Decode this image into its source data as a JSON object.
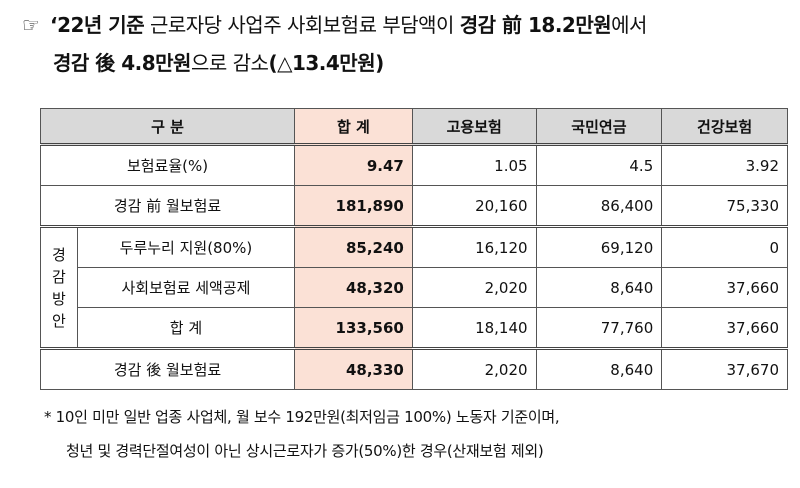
{
  "heading": {
    "marker": "☞",
    "line1_bold_a": "‘22년 기준",
    "line1_text_a": " 근로자당 사업주 사회보험료 부담액이 ",
    "line1_bold_b": "경감 前 18.2만원",
    "line1_text_b": "에서",
    "line2_bold_a": "경감 後 4.8만원",
    "line2_text_a": "으로 감소",
    "line2_bold_b": "(△13.4만원)"
  },
  "table": {
    "headers": [
      "구 분",
      "합 계",
      "고용보험",
      "국민연금",
      "건강보험"
    ],
    "rows": [
      {
        "label": "보험료율(%)",
        "total": "9.47",
        "employment": "1.05",
        "pension": "4.5",
        "health": "3.92"
      },
      {
        "label": "경감 前 월보험료",
        "total": "181,890",
        "employment": "20,160",
        "pension": "86,400",
        "health": "75,330"
      }
    ],
    "group_label": "경감방안",
    "group_chars": [
      "경",
      "감",
      "방",
      "안"
    ],
    "group_rows": [
      {
        "label": "두루누리 지원(80%)",
        "total": "85,240",
        "employment": "16,120",
        "pension": "69,120",
        "health": "0"
      },
      {
        "label": "사회보험료 세액공제",
        "total": "48,320",
        "employment": "2,020",
        "pension": "8,640",
        "health": "37,660"
      },
      {
        "label": "합 계",
        "total": "133,560",
        "employment": "18,140",
        "pension": "77,760",
        "health": "37,660"
      }
    ],
    "final_row": {
      "label": "경감 後 월보험료",
      "total": "48,330",
      "employment": "2,020",
      "pension": "8,640",
      "health": "37,670"
    },
    "colors": {
      "header_bg": "#d9d9d9",
      "total_bg": "#fbe1d6"
    }
  },
  "note": {
    "line1": "* 10인 미만 일반 업종 사업체, 월 보수 192만원(최저임금 100%) 노동자 기준이며,",
    "line2": "청년 및 경력단절여성이 아닌 상시근로자가 증가(50%)한 경우(산재보험 제외)"
  }
}
